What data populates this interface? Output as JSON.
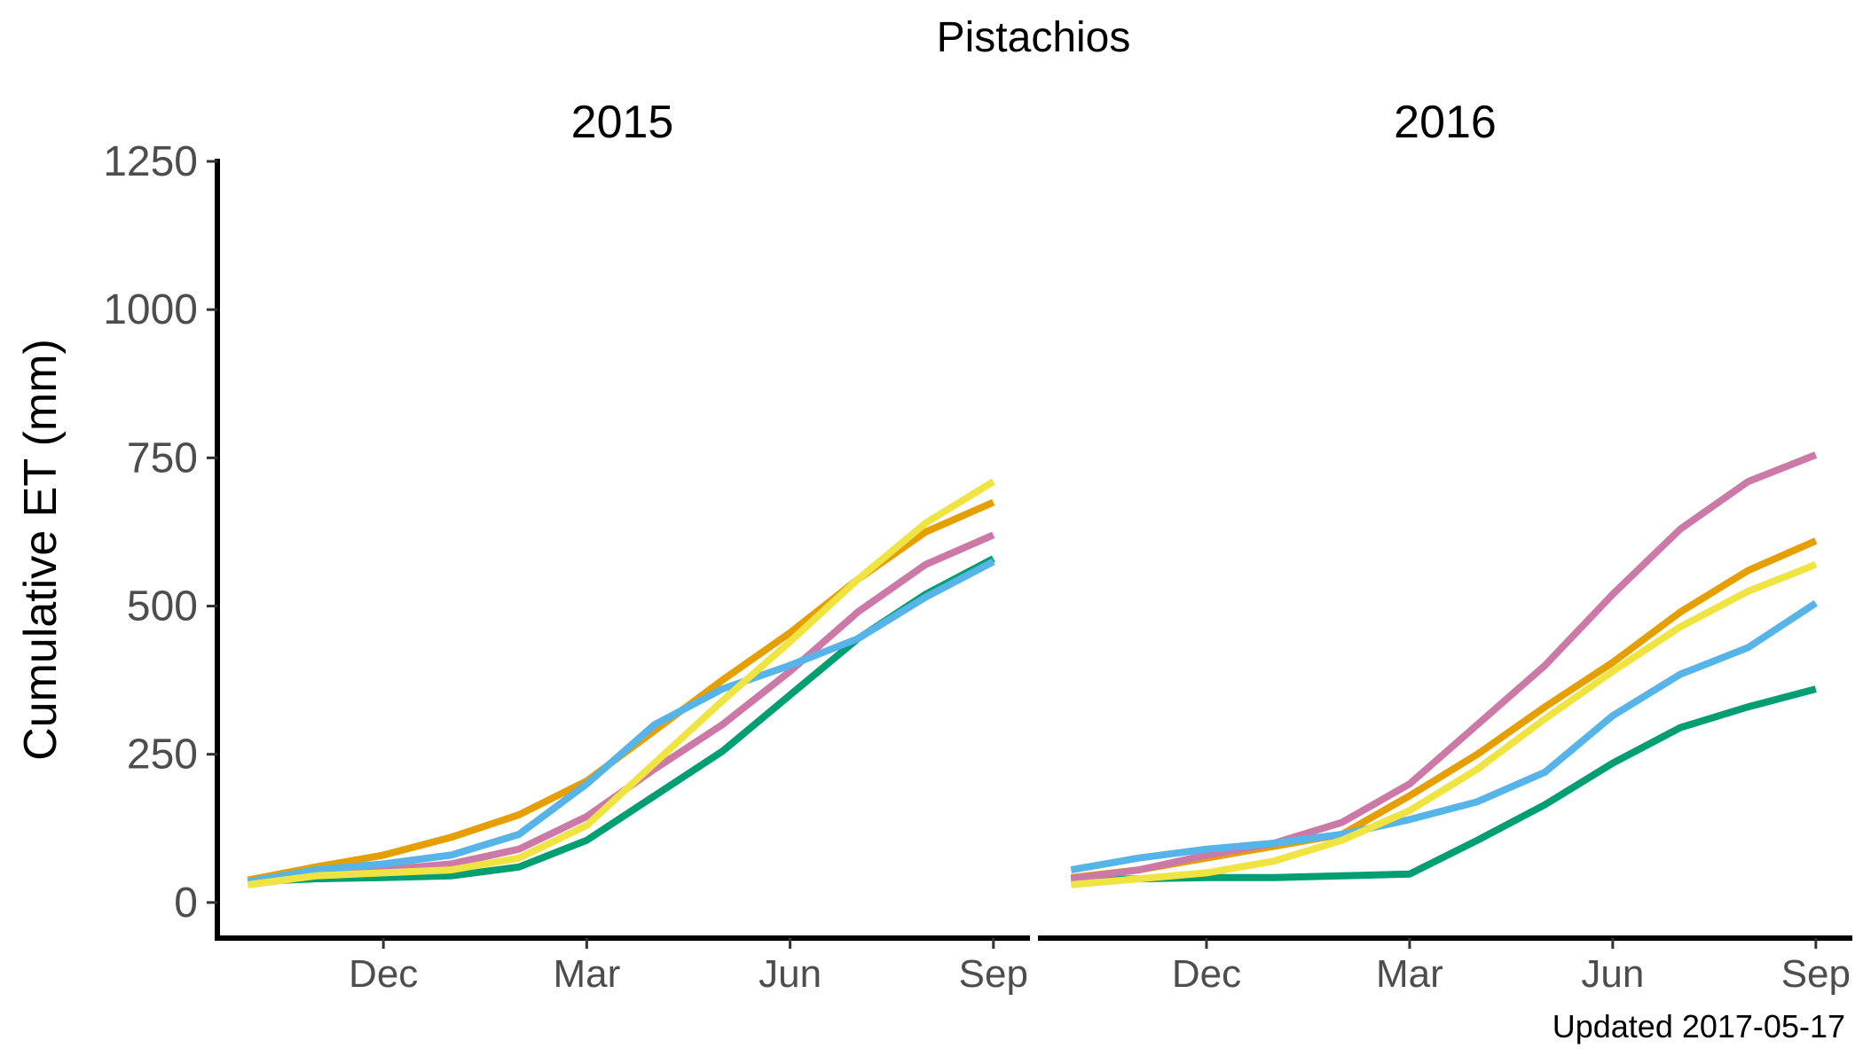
{
  "page_title": "Pistachios",
  "caption": "Updated  2017-05-17",
  "chart_data": {
    "type": "line",
    "title": "Pistachios",
    "ylabel": "Cumulative ET (mm)",
    "xlabel": "",
    "ylim": [
      -60,
      1250
    ],
    "yticks": [
      0,
      250,
      500,
      750,
      1000,
      1250
    ],
    "x_ticks": [
      {
        "label": "Dec",
        "month": 2
      },
      {
        "label": "Mar",
        "month": 5
      },
      {
        "label": "Jun",
        "month": 8
      },
      {
        "label": "Sep",
        "month": 11
      }
    ],
    "x_range": [
      -0.45,
      11.5
    ],
    "legend": "none",
    "grid": false,
    "panels": [
      {
        "title": "2015",
        "series": [
          {
            "color": "#009E73",
            "x": [
              0,
              1,
              2,
              3,
              4,
              5,
              6,
              7,
              8,
              9,
              10,
              11
            ],
            "values": [
              35,
              40,
              42,
              45,
              60,
              105,
              180,
              255,
              350,
              445,
              520,
              580
            ]
          },
          {
            "color": "#E69F00",
            "x": [
              0,
              1,
              2,
              3,
              4,
              5,
              6,
              7,
              8,
              9,
              10,
              11
            ],
            "values": [
              38,
              60,
              80,
              110,
              148,
              205,
              290,
              375,
              455,
              545,
              625,
              675
            ]
          },
          {
            "color": "#CC79A7",
            "x": [
              0,
              1,
              2,
              3,
              4,
              5,
              6,
              7,
              8,
              9,
              10,
              11
            ],
            "values": [
              30,
              45,
              55,
              65,
              90,
              145,
              225,
              300,
              390,
              490,
              570,
              620
            ]
          },
          {
            "color": "#56B4E9",
            "x": [
              0,
              1,
              2,
              3,
              4,
              5,
              6,
              7,
              8,
              9,
              10,
              11
            ],
            "values": [
              35,
              55,
              65,
              80,
              115,
              200,
              300,
              360,
              400,
              445,
              515,
              575
            ]
          },
          {
            "color": "#F0E442",
            "x": [
              0,
              1,
              2,
              3,
              4,
              5,
              6,
              7,
              8,
              9,
              10,
              11
            ],
            "values": [
              30,
              45,
              50,
              55,
              75,
              130,
              235,
              340,
              440,
              545,
              640,
              710
            ]
          }
        ]
      },
      {
        "title": "2016",
        "series": [
          {
            "color": "#009E73",
            "x": [
              0,
              1,
              2,
              3,
              4,
              5,
              6,
              7,
              8,
              9,
              10,
              11
            ],
            "values": [
              38,
              40,
              42,
              42,
              45,
              48,
              105,
              165,
              235,
              295,
              330,
              360
            ]
          },
          {
            "color": "#E69F00",
            "x": [
              0,
              1,
              2,
              3,
              4,
              5,
              6,
              7,
              8,
              9,
              10,
              11
            ],
            "values": [
              42,
              55,
              75,
              95,
              115,
              180,
              250,
              330,
              405,
              490,
              560,
              610
            ]
          },
          {
            "color": "#CC79A7",
            "x": [
              0,
              1,
              2,
              3,
              4,
              5,
              6,
              7,
              8,
              9,
              10,
              11
            ],
            "values": [
              40,
              55,
              80,
              100,
              135,
              200,
              300,
              400,
              520,
              630,
              710,
              755
            ]
          },
          {
            "color": "#56B4E9",
            "x": [
              0,
              1,
              2,
              3,
              4,
              5,
              6,
              7,
              8,
              9,
              10,
              11
            ],
            "values": [
              55,
              75,
              90,
              100,
              115,
              140,
              170,
              220,
              315,
              385,
              430,
              505
            ]
          },
          {
            "color": "#F0E442",
            "x": [
              0,
              1,
              2,
              3,
              4,
              5,
              6,
              7,
              8,
              9,
              10,
              11
            ],
            "values": [
              30,
              40,
              50,
              70,
              105,
              155,
              225,
              310,
              390,
              465,
              525,
              570
            ]
          }
        ]
      }
    ]
  }
}
